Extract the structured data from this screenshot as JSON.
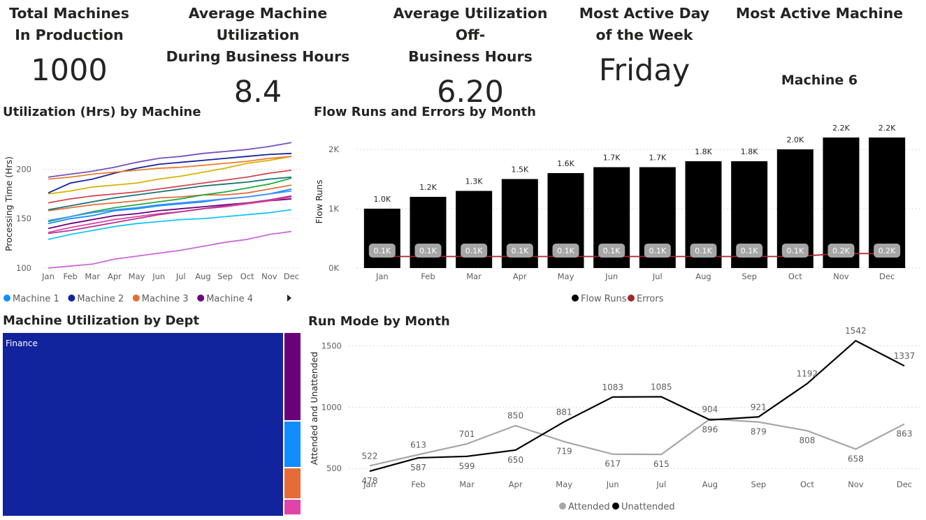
{
  "kpis": [
    {
      "title_lines": [
        "Total Machines",
        "In Production"
      ],
      "value": "1000"
    },
    {
      "title_lines": [
        "Average Machine Utilization",
        "During Business Hours"
      ],
      "value": "8.4"
    },
    {
      "title_lines": [
        "Average Utilization Off-",
        "Business Hours"
      ],
      "value": "6.20"
    },
    {
      "title_lines": [
        "Most Active Day",
        "of the Week"
      ],
      "value": "Friday"
    },
    {
      "title_lines": [
        "Most Active Machine",
        ""
      ],
      "value": "Machine 6"
    }
  ],
  "panels": {
    "utilization": "Utilization (Hrs) by Machine",
    "flow": "Flow Runs and Errors by Month",
    "dept": "Machine Utilization by Dept",
    "runmode": "Run Mode by Month"
  },
  "colors": {
    "bar": "#000000",
    "errors": "#a4262c",
    "pill": "#a6a6a6",
    "attended": "#a6a6a6",
    "unattended": "#000000",
    "grid": "#d9d9d9"
  },
  "chart_data": [
    {
      "type": "line",
      "title": "Utilization (Hrs) by Machine",
      "ylabel": "Processing Time (Hrs)",
      "xlabel": "",
      "ylim": [
        100,
        230
      ],
      "yticks": [
        100,
        150,
        200
      ],
      "grid": true,
      "categories": [
        "Jan",
        "Feb",
        "Mar",
        "Apr",
        "May",
        "Jun",
        "Jul",
        "Aug",
        "Sep",
        "Oct",
        "Nov",
        "Dec"
      ],
      "legend": {
        "position": "bottom-left",
        "has_more_arrow": true
      },
      "series": [
        {
          "name": "Machine 1",
          "color": "#118dff",
          "values": [
            145,
            150,
            153,
            158,
            160,
            163,
            165,
            167,
            170,
            172,
            175,
            180
          ],
          "show_in_legend": true
        },
        {
          "name": "Machine 2",
          "color": "#12239e",
          "values": [
            176,
            186,
            190,
            196,
            201,
            205,
            207,
            209,
            211,
            213,
            215,
            216
          ],
          "show_in_legend": true
        },
        {
          "name": "Machine 3",
          "color": "#e66c37",
          "values": [
            158,
            161,
            164,
            166,
            168,
            171,
            172,
            174,
            174,
            176,
            180,
            184
          ],
          "show_in_legend": true
        },
        {
          "name": "Machine 4",
          "color": "#6b007b",
          "values": [
            140,
            145,
            149,
            153,
            155,
            158,
            160,
            162,
            164,
            166,
            168,
            170
          ],
          "show_in_legend": true
        },
        {
          "color": "#e044a7",
          "values": [
            136,
            141,
            145,
            149,
            152,
            155,
            157,
            160,
            162,
            165,
            168,
            172
          ]
        },
        {
          "color": "#744ec2",
          "values": [
            192,
            195,
            198,
            202,
            207,
            211,
            213,
            216,
            218,
            220,
            223,
            227
          ]
        },
        {
          "color": "#d9b300",
          "values": [
            175,
            178,
            182,
            184,
            186,
            190,
            193,
            197,
            201,
            206,
            209,
            213
          ]
        },
        {
          "color": "#d64550",
          "values": [
            166,
            170,
            173,
            175,
            177,
            180,
            183,
            186,
            189,
            192,
            196,
            199
          ]
        },
        {
          "color": "#197278",
          "values": [
            159,
            163,
            167,
            171,
            174,
            177,
            180,
            183,
            185,
            187,
            190,
            192
          ]
        },
        {
          "color": "#1aab40",
          "values": [
            147,
            152,
            157,
            161,
            164,
            167,
            170,
            174,
            177,
            181,
            185,
            191
          ]
        },
        {
          "color": "#15c6f4",
          "values": [
            129,
            134,
            138,
            142,
            145,
            147,
            149,
            150,
            152,
            154,
            156,
            159
          ]
        },
        {
          "color": "#4092ff",
          "values": [
            148,
            152,
            156,
            159,
            161,
            164,
            166,
            168,
            170,
            172,
            175,
            178
          ]
        },
        {
          "color": "#ed7d31",
          "values": [
            190,
            192,
            195,
            197,
            199,
            201,
            202,
            204,
            206,
            208,
            211,
            213
          ]
        },
        {
          "color": "#b3398f",
          "values": [
            135,
            138,
            142,
            146,
            150,
            154,
            157,
            160,
            163,
            166,
            169,
            173
          ]
        },
        {
          "color": "#c86ad6",
          "values": [
            100,
            102,
            104,
            109,
            112,
            115,
            118,
            122,
            126,
            129,
            134,
            137
          ]
        }
      ]
    },
    {
      "type": "bar",
      "title": "Flow Runs and Errors by Month",
      "ylabel": "Flow Runs",
      "xlabel": "",
      "ylim": [
        0,
        2400
      ],
      "yticks": [
        {
          "v": 0,
          "label": "0K"
        },
        {
          "v": 1000,
          "label": "1K"
        },
        {
          "v": 2000,
          "label": "2K"
        }
      ],
      "grid": true,
      "categories": [
        "Jan",
        "Feb",
        "Mar",
        "Apr",
        "May",
        "Jun",
        "Jul",
        "Aug",
        "Sep",
        "Oct",
        "Nov",
        "Dec"
      ],
      "series": [
        {
          "name": "Flow Runs",
          "color": "#000000",
          "values": [
            1000,
            1200,
            1300,
            1500,
            1600,
            1700,
            1700,
            1800,
            1800,
            2000,
            2200,
            2200
          ],
          "labels": [
            "1.0K",
            "1.2K",
            "1.3K",
            "1.5K",
            "1.6K",
            "1.7K",
            "1.7K",
            "1.8K",
            "1.8K",
            "2.0K",
            "2.2K",
            "2.2K"
          ]
        },
        {
          "name": "Errors",
          "color": "#a4262c",
          "values": [
            100,
            100,
            100,
            100,
            100,
            100,
            100,
            100,
            100,
            100,
            150,
            150
          ],
          "labels": [
            "0.1K",
            "0.1K",
            "0.1K",
            "0.1K",
            "0.1K",
            "0.1K",
            "0.1K",
            "0.1K",
            "0.1K",
            "0.1K",
            "0.2K",
            "0.2K"
          ]
        }
      ],
      "legend": {
        "position": "bottom-center"
      }
    },
    {
      "type": "treemap",
      "title": "Machine Utilization by Dept",
      "items": [
        {
          "name": "Finance",
          "color": "#12239e",
          "share": 0.934
        },
        {
          "color": "#6b007b",
          "share": 0.034
        },
        {
          "color": "#118dff",
          "share": 0.018
        },
        {
          "color": "#e66c37",
          "share": 0.012
        },
        {
          "color": "#e044a7",
          "share": 0.006
        }
      ]
    },
    {
      "type": "line",
      "title": "Run Mode by Month",
      "ylabel": "Attended and Unattended",
      "xlabel": "",
      "ylim": [
        450,
        1600
      ],
      "yticks": [
        500,
        1000,
        1500
      ],
      "grid": true,
      "categories": [
        "Jan",
        "Feb",
        "Mar",
        "Apr",
        "May",
        "Jun",
        "Jul",
        "Aug",
        "Sep",
        "Oct",
        "Nov",
        "Dec"
      ],
      "series": [
        {
          "name": "Attended",
          "color": "#a6a6a6",
          "values": [
            522,
            613,
            701,
            850,
            719,
            617,
            615,
            904,
            879,
            808,
            658,
            863
          ]
        },
        {
          "name": "Unattended",
          "color": "#000000",
          "values": [
            478,
            587,
            599,
            650,
            881,
            1083,
            1085,
            896,
            921,
            1192,
            1542,
            1337
          ]
        }
      ],
      "legend": {
        "position": "bottom-center"
      }
    }
  ]
}
